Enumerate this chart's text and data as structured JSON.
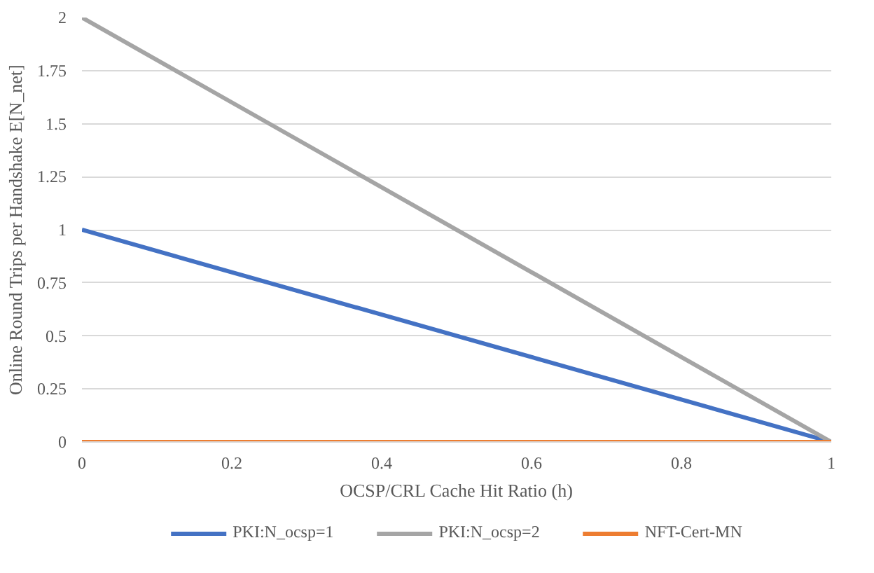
{
  "chart_data": {
    "type": "line",
    "xlabel": "OCSP/CRL Cache Hit Ratio (h)",
    "ylabel": "Online Round Trips per Handshake E[N_net]",
    "x": [
      0,
      1
    ],
    "series": [
      {
        "name": "PKI:N_ocsp=1",
        "color": "#4472c4",
        "values": [
          1,
          0
        ]
      },
      {
        "name": "PKI:N_ocsp=2",
        "color": "#a5a5a5",
        "values": [
          2,
          0
        ]
      },
      {
        "name": "NFT-Cert-MN",
        "color": "#ed7d31",
        "values": [
          0,
          0
        ]
      }
    ],
    "xlim": [
      0,
      1
    ],
    "xticks": [
      0,
      0.2,
      0.4,
      0.6,
      0.8,
      1
    ],
    "ylim": [
      0,
      2
    ],
    "yticks": [
      0,
      0.25,
      0.5,
      0.75,
      1,
      1.25,
      1.5,
      1.75,
      2
    ],
    "grid": "y",
    "legend": "bottom",
    "marker": "none",
    "line_style": "solid"
  }
}
